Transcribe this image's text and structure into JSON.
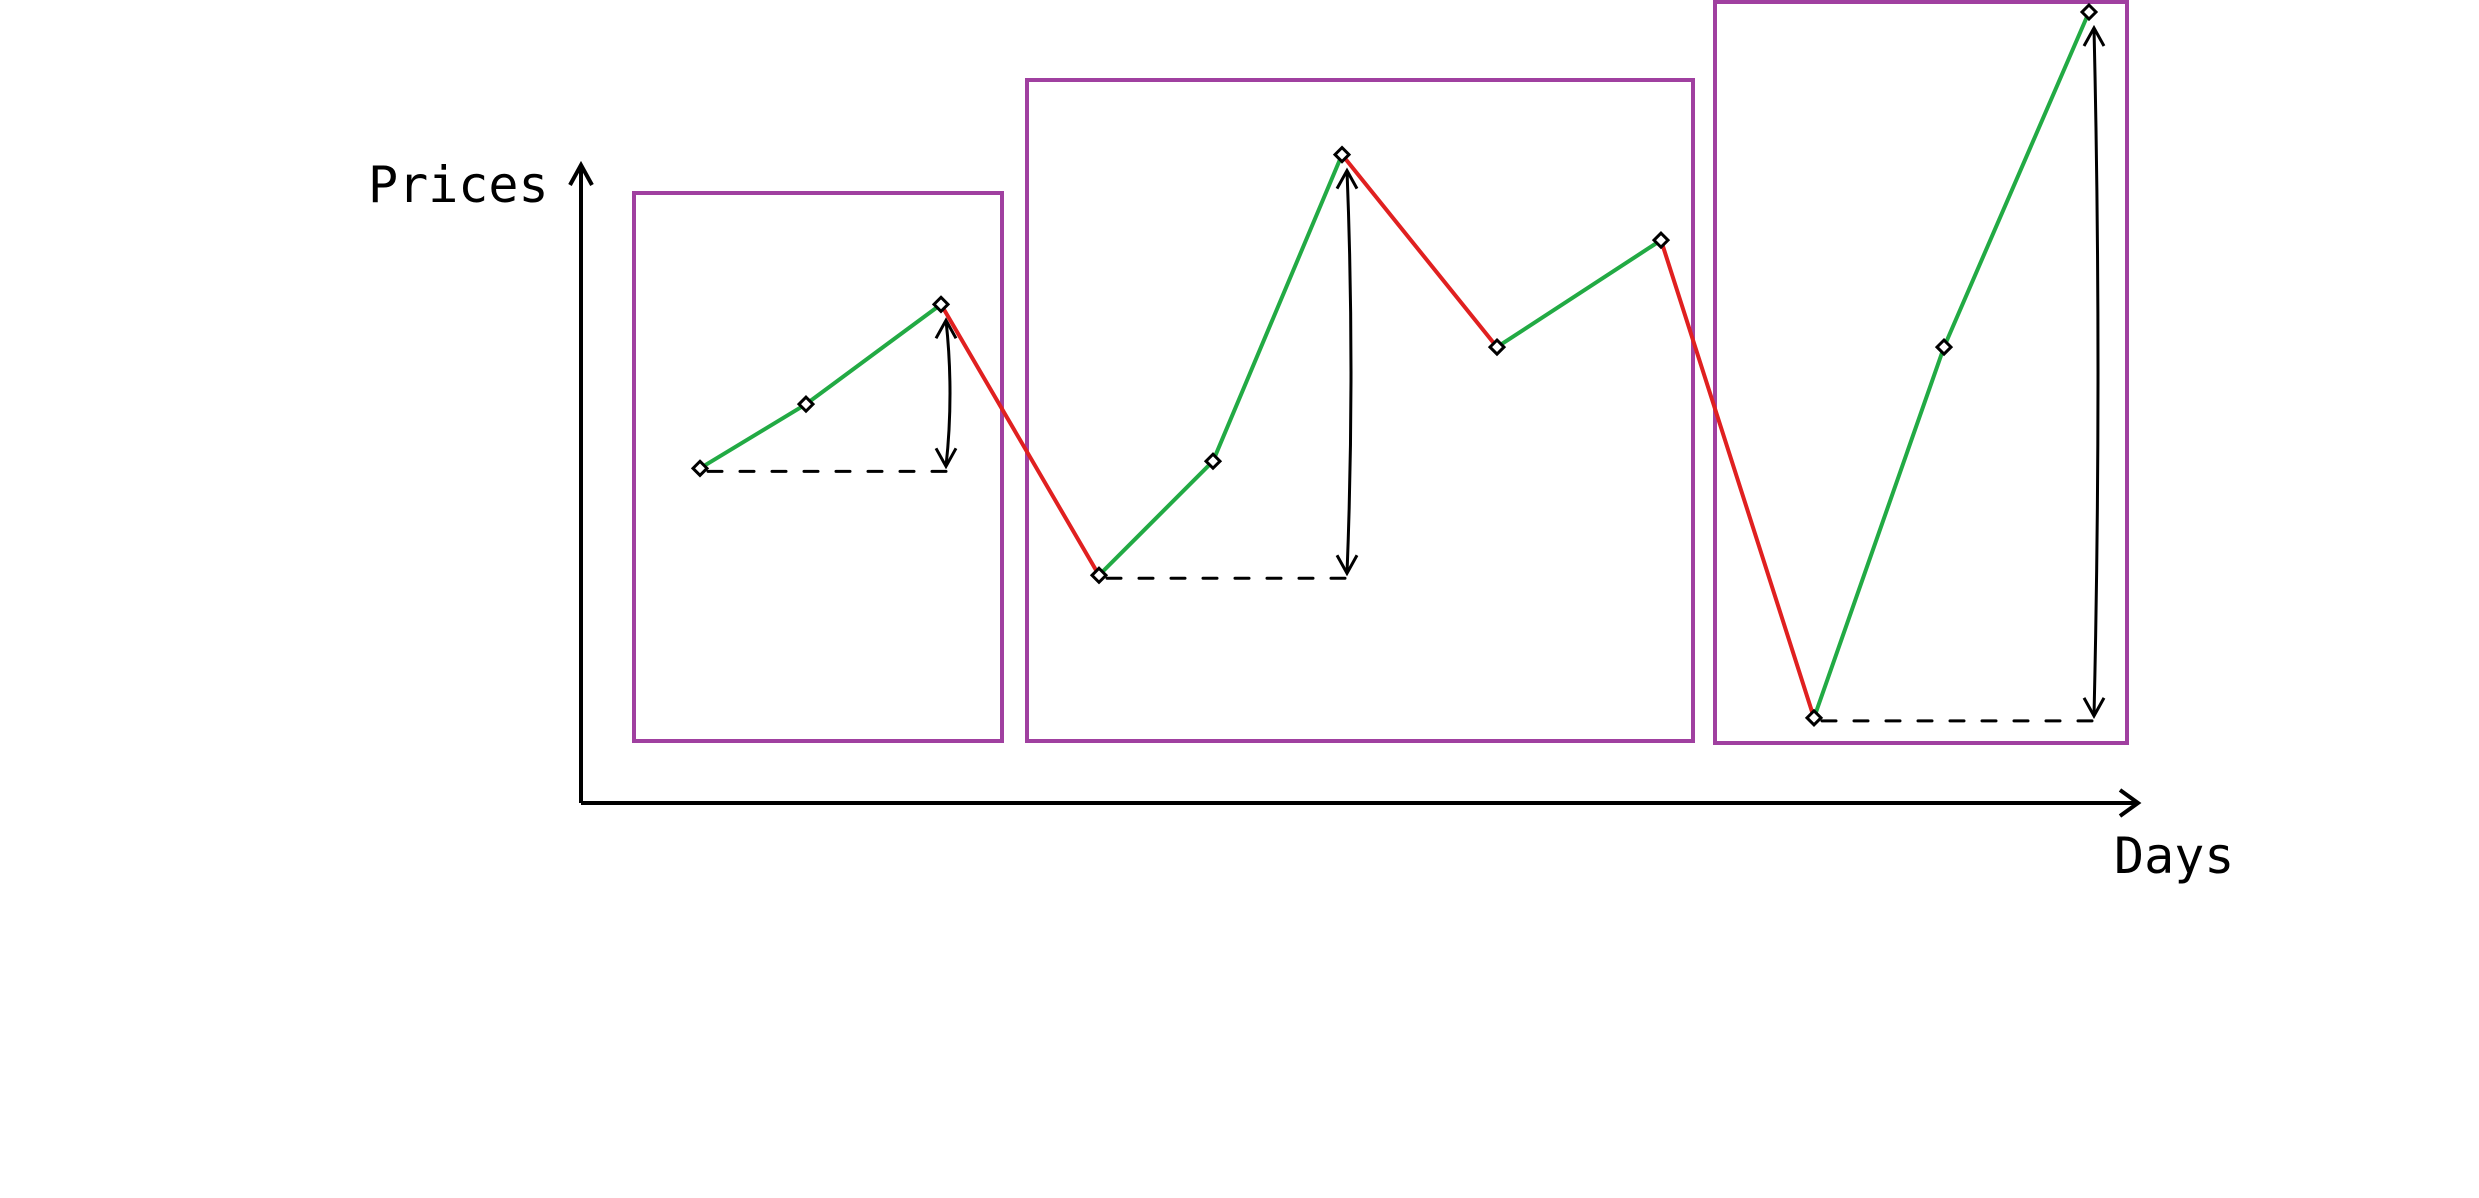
{
  "chart_data": {
    "type": "line",
    "xlabel": "Days",
    "ylabel": "Prices",
    "grid": false,
    "ylim": [
      0,
      100
    ],
    "series": [
      {
        "values": [
          36,
          45,
          59,
          21,
          37,
          80,
          53,
          68,
          1,
          53,
          100
        ]
      }
    ],
    "segment_colors": {
      "up": "#22aa44",
      "down": "#e02020"
    },
    "windows": [
      {
        "start": 0,
        "end": 2,
        "rise_from": 0,
        "rise_to": 2
      },
      {
        "start": 3,
        "end": 7,
        "rise_from": 3,
        "rise_to": 5
      },
      {
        "start": 8,
        "end": 10,
        "rise_from": 8,
        "rise_to": 10
      }
    ],
    "window_color": "#a040a0"
  }
}
